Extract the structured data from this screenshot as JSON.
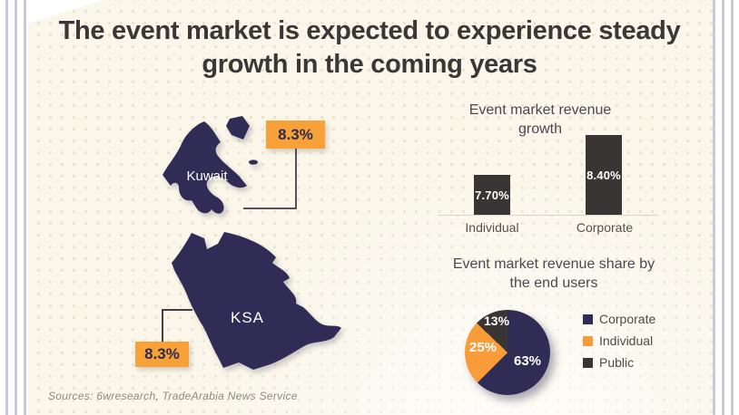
{
  "title": "The event market is expected to experience steady growth in the coming years",
  "maps": {
    "kuwait": {
      "name": "Kuwait",
      "growth": "8.3%"
    },
    "ksa": {
      "name": "KSA",
      "growth": "8.3%"
    }
  },
  "chart_data": [
    {
      "type": "bar",
      "title": "Event market revenue growth",
      "categories": [
        "Individual",
        "Corporate"
      ],
      "values": [
        7.7,
        8.4
      ],
      "data_labels": [
        "7.70%",
        "8.40%"
      ],
      "xlabel": "",
      "ylabel": "",
      "ylim": [
        7.0,
        8.5
      ],
      "grid": false,
      "legend": false,
      "bar_color": "#3a3535"
    },
    {
      "type": "pie",
      "title": "Event market revenue share by the end users",
      "labels": [
        "Corporate",
        "Individual",
        "Public"
      ],
      "values": [
        63,
        25,
        13
      ],
      "data_labels": [
        "63%",
        "25%",
        "13%"
      ],
      "colors": [
        "#312c55",
        "#f89c3a",
        "#3a3535"
      ],
      "legend_position": "right",
      "start_angle_deg": 0
    }
  ],
  "sources": "Sources: 6wresearch, TradeArabia News Service",
  "colors": {
    "accent_orange": "#f9a139",
    "map_navy": "#312c55",
    "bar_dark": "#3a3535",
    "title_text": "#3a3737",
    "chart_title_text": "#4c4753",
    "background_cream": "#faf6e9",
    "stripe_lavender": "#cbc8db"
  }
}
